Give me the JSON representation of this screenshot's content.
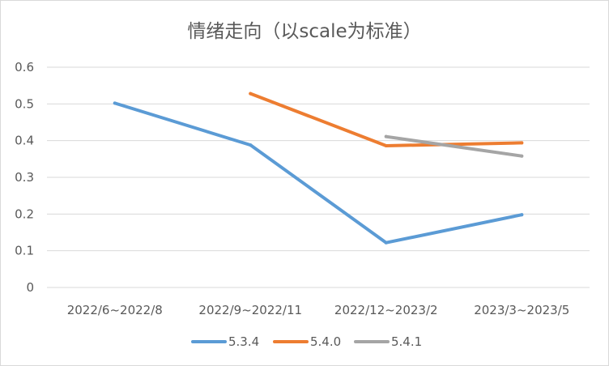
{
  "chart_data": {
    "type": "line",
    "title": "情绪走向（以scale为标准）",
    "xlabel": "",
    "ylabel": "",
    "categories": [
      "2022/6~2022/8",
      "2022/9~2022/11",
      "2022/12~2023/2",
      "2023/3~2023/5"
    ],
    "ylim": [
      0,
      0.6
    ],
    "yticks": [
      "0",
      "0.1",
      "0.2",
      "0.3",
      "0.4",
      "0.5",
      "0.6"
    ],
    "grid": true,
    "legend_position": "bottom",
    "series": [
      {
        "name": "5.3.4",
        "color": "#5b9bd5",
        "values": [
          0.502,
          0.388,
          0.122,
          0.198
        ]
      },
      {
        "name": "5.4.0",
        "color": "#ed7d31",
        "values": [
          null,
          0.528,
          0.386,
          0.394
        ]
      },
      {
        "name": "5.4.1",
        "color": "#a5a5a5",
        "values": [
          null,
          null,
          0.411,
          0.358
        ]
      }
    ]
  }
}
